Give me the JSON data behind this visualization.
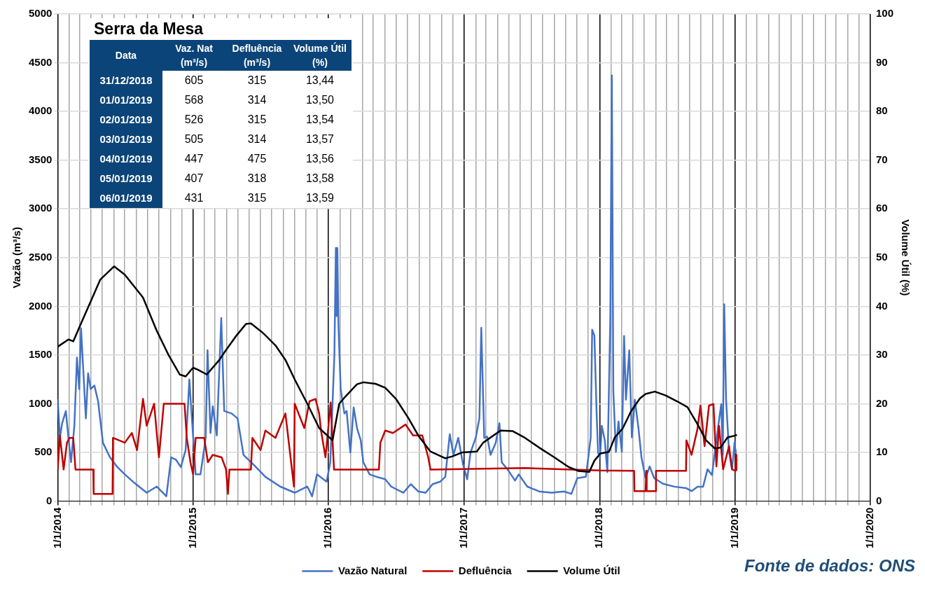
{
  "chart_data": [
    {
      "type": "line",
      "ylabel": "Vazão (m³/s)",
      "y2label": "Volume Útil (%)",
      "series": [
        {
          "name": "Vazão Natural",
          "color": "#4472c4",
          "x": [
            "2014-01-01",
            "2014-01-07",
            "2014-01-13",
            "2014-01-23",
            "2014-01-30",
            "2014-02-06",
            "2014-02-15",
            "2014-02-22",
            "2014-02-28",
            "2014-03-05",
            "2014-03-11",
            "2014-03-18",
            "2014-03-24",
            "2014-03-31",
            "2014-04-10",
            "2014-04-20",
            "2014-05-03",
            "2014-05-22",
            "2014-06-11",
            "2014-07-01",
            "2014-07-27",
            "2014-08-29",
            "2014-09-25",
            "2014-10-21",
            "2014-11-03",
            "2014-11-16",
            "2014-11-29",
            "2014-12-12",
            "2014-12-22",
            "2014-12-28",
            "2015-01-08",
            "2015-01-21",
            "2015-02-04",
            "2015-02-09",
            "2015-02-17",
            "2015-02-23",
            "2015-03-06",
            "2015-03-18",
            "2015-03-26",
            "2015-04-15",
            "2015-05-01",
            "2015-05-17",
            "2015-06-13",
            "2015-07-15",
            "2015-08-24",
            "2015-10-02",
            "2015-11-05",
            "2015-11-18",
            "2015-12-01",
            "2015-12-27",
            "2016-01-06",
            "2016-01-11",
            "2016-01-17",
            "2016-01-21",
            "2016-01-23",
            "2016-01-25",
            "2016-01-28",
            "2016-02-03",
            "2016-02-13",
            "2016-02-19",
            "2016-02-29",
            "2016-03-09",
            "2016-03-18",
            "2016-03-28",
            "2016-04-04",
            "2016-04-21",
            "2016-05-10",
            "2016-06-02",
            "2016-06-18",
            "2016-07-21",
            "2016-08-10",
            "2016-08-30",
            "2016-09-19",
            "2016-10-08",
            "2016-10-28",
            "2016-11-11",
            "2016-11-23",
            "2016-12-03",
            "2016-12-16",
            "2016-12-29",
            "2017-01-09",
            "2017-01-18",
            "2017-02-01",
            "2017-02-11",
            "2017-02-16",
            "2017-02-24",
            "2017-03-04",
            "2017-03-13",
            "2017-03-27",
            "2017-04-06",
            "2017-04-12",
            "2017-04-28",
            "2017-05-18",
            "2017-05-28",
            "2017-06-20",
            "2017-07-22",
            "2017-08-25",
            "2017-09-27",
            "2017-10-17",
            "2017-11-02",
            "2017-11-25",
            "2017-12-08",
            "2017-12-12",
            "2017-12-18",
            "2017-12-24",
            "2017-12-28",
            "2018-01-02",
            "2018-01-07",
            "2018-01-15",
            "2018-01-22",
            "2018-01-30",
            "2018-02-03",
            "2018-02-07",
            "2018-02-14",
            "2018-02-21",
            "2018-03-02",
            "2018-03-08",
            "2018-03-13",
            "2018-03-22",
            "2018-03-29",
            "2018-04-06",
            "2018-04-16",
            "2018-04-24",
            "2018-05-05",
            "2018-05-16",
            "2018-05-28",
            "2018-06-21",
            "2018-07-22",
            "2018-08-22",
            "2018-09-06",
            "2018-09-22",
            "2018-10-07",
            "2018-10-19",
            "2018-10-31",
            "2018-11-08",
            "2018-11-19",
            "2018-11-25",
            "2018-11-29",
            "2018-12-03",
            "2018-12-08",
            "2018-12-16",
            "2018-12-24",
            "2018-12-31",
            "2019-01-01",
            "2019-01-02",
            "2019-01-03",
            "2019-01-04",
            "2019-01-05",
            "2019-01-06"
          ],
          "values": [
            1050,
            650,
            800,
            925,
            650,
            400,
            775,
            1475,
            1150,
            1775,
            1350,
            850,
            1312,
            1150,
            1187,
            1025,
            600,
            450,
            350,
            275,
            187,
            87,
            150,
            50,
            450,
            425,
            350,
            525,
            1250,
            900,
            275,
            275,
            650,
            1550,
            700,
            975,
            675,
            1880,
            925,
            900,
            850,
            475,
            375,
            250,
            150,
            87,
            150,
            50,
            275,
            200,
            400,
            900,
            1500,
            2600,
            1900,
            2600,
            1800,
            1150,
            900,
            925,
            500,
            962,
            750,
            625,
            400,
            275,
            250,
            225,
            150,
            87,
            175,
            100,
            87,
            175,
            200,
            250,
            687,
            475,
            650,
            375,
            225,
            500,
            650,
            850,
            1780,
            650,
            662,
            475,
            600,
            800,
            400,
            325,
            212,
            275,
            150,
            100,
            87,
            100,
            75,
            237,
            250,
            650,
            1760,
            1700,
            900,
            500,
            446,
            774,
            625,
            298,
            1900,
            4370,
            1131,
            506,
            818,
            506,
            1696,
            1042,
            1548,
            655,
            1042,
            744,
            446,
            238,
            357,
            238,
            179,
            149,
            134,
            104,
            149,
            149,
            327,
            268,
            506,
            833,
            997,
            476,
            2020,
            1042,
            506,
            327,
            605,
            568,
            526,
            505,
            447,
            407,
            431
          ]
        },
        {
          "name": "Defluência",
          "color": "#c00000",
          "x": [
            "2014-01-01",
            "2014-01-07",
            "2014-01-17",
            "2014-01-26",
            "2014-02-02",
            "2014-02-12",
            "2014-02-18",
            "2014-04-07",
            "2014-04-08",
            "2014-05-29",
            "2014-05-30",
            "2014-07-01",
            "2014-07-20",
            "2014-08-03",
            "2014-08-19",
            "2014-08-29",
            "2014-09-18",
            "2014-10-01",
            "2014-10-14",
            "2014-12-09",
            "2014-12-15",
            "2014-12-25",
            "2015-01-01",
            "2015-01-08",
            "2015-01-31",
            "2015-02-10",
            "2015-02-23",
            "2015-03-19",
            "2015-03-31",
            "2015-04-05",
            "2015-04-09",
            "2015-06-06",
            "2015-06-10",
            "2015-07-02",
            "2015-07-15",
            "2015-08-11",
            "2015-09-07",
            "2015-09-30",
            "2015-10-02",
            "2015-10-28",
            "2015-11-11",
            "2015-11-27",
            "2015-12-07",
            "2015-12-12",
            "2015-12-24",
            "2016-01-07",
            "2016-01-16",
            "2016-05-16",
            "2016-05-20",
            "2016-06-02",
            "2016-06-23",
            "2016-07-27",
            "2016-08-16",
            "2016-09-10",
            "2016-09-26",
            "2016-10-02",
            "2017-06-15",
            "2018-01-01",
            "2018-04-04",
            "2018-04-05",
            "2018-05-05",
            "2018-05-07",
            "2018-05-08",
            "2018-06-01",
            "2018-06-02",
            "2018-08-22",
            "2018-08-23",
            "2018-09-06",
            "2018-09-22",
            "2018-09-30",
            "2018-10-11",
            "2018-10-23",
            "2018-11-04",
            "2018-11-12",
            "2018-11-19",
            "2018-11-30",
            "2018-12-16",
            "2018-12-24",
            "2018-12-31",
            "2019-01-01",
            "2019-01-02",
            "2019-01-03",
            "2019-01-04",
            "2019-01-05",
            "2019-01-06"
          ],
          "values": [
            325,
            675,
            325,
            600,
            650,
            650,
            325,
            325,
            75,
            75,
            650,
            600,
            700,
            525,
            1050,
            775,
            1000,
            450,
            1000,
            1000,
            650,
            400,
            275,
            650,
            650,
            400,
            475,
            450,
            325,
            75,
            325,
            325,
            650,
            525,
            725,
            650,
            900,
            150,
            1000,
            750,
            1025,
            1050,
            900,
            725,
            450,
            1012,
            325,
            325,
            600,
            725,
            700,
            787,
            675,
            675,
            450,
            325,
            340,
            315,
            312,
            104,
            104,
            312,
            104,
            104,
            312,
            312,
            625,
            476,
            744,
            982,
            565,
            982,
            997,
            357,
            774,
            327,
            565,
            327,
            315,
            314,
            315,
            314,
            475,
            318,
            315
          ]
        },
        {
          "name": "Volume Útil",
          "color": "#000000",
          "axis": "y2",
          "x": [
            "2014-01-01",
            "2014-01-30",
            "2014-02-12",
            "2014-03-05",
            "2014-03-31",
            "2014-04-26",
            "2014-06-02",
            "2014-07-01",
            "2014-07-27",
            "2014-08-19",
            "2014-09-25",
            "2014-10-27",
            "2014-11-26",
            "2014-12-12",
            "2015-01-01",
            "2015-01-14",
            "2015-02-07",
            "2015-03-13",
            "2015-03-26",
            "2015-04-28",
            "2015-05-24",
            "2015-06-06",
            "2015-07-09",
            "2015-08-11",
            "2015-09-07",
            "2015-10-02",
            "2015-11-05",
            "2015-12-07",
            "2016-01-12",
            "2016-01-30",
            "2016-02-16",
            "2016-03-18",
            "2016-04-04",
            "2016-05-07",
            "2016-06-02",
            "2016-07-01",
            "2016-08-04",
            "2016-08-30",
            "2016-10-02",
            "2016-11-11",
            "2016-11-30",
            "2016-12-26",
            "2017-02-04",
            "2017-02-21",
            "2017-04-09",
            "2017-05-11",
            "2017-06-14",
            "2017-07-22",
            "2017-09-01",
            "2017-10-10",
            "2017-11-05",
            "2017-12-04",
            "2017-12-18",
            "2018-01-03",
            "2018-01-26",
            "2018-02-11",
            "2018-03-04",
            "2018-03-27",
            "2018-04-20",
            "2018-05-05",
            "2018-05-30",
            "2018-06-28",
            "2018-07-29",
            "2018-08-26",
            "2018-09-22",
            "2018-10-15",
            "2018-11-08",
            "2018-11-23",
            "2018-12-12",
            "2018-12-31",
            "2019-01-01",
            "2019-01-02",
            "2019-01-03",
            "2019-01-04",
            "2019-01-05",
            "2019-01-06"
          ],
          "values": [
            31.7,
            33.2,
            32.8,
            36.5,
            41,
            45.5,
            48.2,
            46.5,
            44,
            41.8,
            35,
            30,
            26,
            25.6,
            27.4,
            27,
            26,
            29,
            30.5,
            34,
            36.4,
            36.5,
            34.5,
            32,
            29,
            25,
            20,
            15,
            12.5,
            20,
            21.5,
            24,
            24.4,
            24.1,
            23.3,
            21,
            17,
            13.5,
            10.2,
            8.8,
            9.2,
            10,
            10.2,
            12,
            14.5,
            14.4,
            13,
            11,
            9,
            7,
            6.2,
            6,
            8.3,
            9.8,
            10.1,
            13.1,
            14.9,
            18.5,
            21.1,
            22,
            22.5,
            21.7,
            20.5,
            19.3,
            15.8,
            12.5,
            10.8,
            11,
            13.1,
            13.44,
            13.5,
            13.54,
            13.57,
            13.56,
            13.58,
            13.59
          ]
        }
      ],
      "xlim": [
        "2014-01-01",
        "2020-01-01"
      ],
      "xticks": [
        {
          "value": "2014-01-01",
          "label": "1/1/2014"
        },
        {
          "value": "2014-02-01",
          "label": null
        },
        {
          "value": "2014-03-01",
          "label": null
        },
        {
          "value": "2014-04-01",
          "label": null
        },
        {
          "value": "2014-05-01",
          "label": null
        },
        {
          "value": "2014-06-01",
          "label": null
        },
        {
          "value": "2014-07-01",
          "label": null
        },
        {
          "value": "2014-08-01",
          "label": null
        },
        {
          "value": "2014-09-01",
          "label": null
        },
        {
          "value": "2014-10-01",
          "label": null
        },
        {
          "value": "2014-11-01",
          "label": null
        },
        {
          "value": "2014-12-01",
          "label": null
        },
        {
          "value": "2015-01-01",
          "label": "1/1/2015"
        },
        {
          "value": "2015-02-01",
          "label": null
        },
        {
          "value": "2015-03-01",
          "label": null
        },
        {
          "value": "2015-04-01",
          "label": null
        },
        {
          "value": "2015-05-01",
          "label": null
        },
        {
          "value": "2015-06-01",
          "label": null
        },
        {
          "value": "2015-07-01",
          "label": null
        },
        {
          "value": "2015-08-01",
          "label": null
        },
        {
          "value": "2015-09-01",
          "label": null
        },
        {
          "value": "2015-10-01",
          "label": null
        },
        {
          "value": "2015-11-01",
          "label": null
        },
        {
          "value": "2015-12-01",
          "label": null
        },
        {
          "value": "2016-01-01",
          "label": "1/1/2016"
        },
        {
          "value": "2016-02-01",
          "label": null
        },
        {
          "value": "2016-03-01",
          "label": null
        },
        {
          "value": "2016-04-01",
          "label": null
        },
        {
          "value": "2016-05-01",
          "label": null
        },
        {
          "value": "2016-06-01",
          "label": null
        },
        {
          "value": "2016-07-01",
          "label": null
        },
        {
          "value": "2016-08-01",
          "label": null
        },
        {
          "value": "2016-09-01",
          "label": null
        },
        {
          "value": "2016-10-01",
          "label": null
        },
        {
          "value": "2016-11-01",
          "label": null
        },
        {
          "value": "2016-12-01",
          "label": null
        },
        {
          "value": "2017-01-01",
          "label": "1/1/2017"
        },
        {
          "value": "2017-02-01",
          "label": null
        },
        {
          "value": "2017-03-01",
          "label": null
        },
        {
          "value": "2017-04-01",
          "label": null
        },
        {
          "value": "2017-05-01",
          "label": null
        },
        {
          "value": "2017-06-01",
          "label": null
        },
        {
          "value": "2017-07-01",
          "label": null
        },
        {
          "value": "2017-08-01",
          "label": null
        },
        {
          "value": "2017-09-01",
          "label": null
        },
        {
          "value": "2017-10-01",
          "label": null
        },
        {
          "value": "2017-11-01",
          "label": null
        },
        {
          "value": "2017-12-01",
          "label": null
        },
        {
          "value": "2018-01-01",
          "label": "1/1/2018"
        },
        {
          "value": "2018-02-01",
          "label": null
        },
        {
          "value": "2018-03-01",
          "label": null
        },
        {
          "value": "2018-04-01",
          "label": null
        },
        {
          "value": "2018-05-01",
          "label": null
        },
        {
          "value": "2018-06-01",
          "label": null
        },
        {
          "value": "2018-07-01",
          "label": null
        },
        {
          "value": "2018-08-01",
          "label": null
        },
        {
          "value": "2018-09-01",
          "label": null
        },
        {
          "value": "2018-10-01",
          "label": null
        },
        {
          "value": "2018-11-01",
          "label": null
        },
        {
          "value": "2018-12-01",
          "label": null
        },
        {
          "value": "2019-01-01",
          "label": "1/1/2019"
        },
        {
          "value": "2019-02-01",
          "label": null
        },
        {
          "value": "2019-03-01",
          "label": null
        },
        {
          "value": "2019-04-01",
          "label": null
        },
        {
          "value": "2019-05-01",
          "label": null
        },
        {
          "value": "2019-06-01",
          "label": null
        },
        {
          "value": "2019-07-01",
          "label": null
        },
        {
          "value": "2019-08-01",
          "label": null
        },
        {
          "value": "2019-09-01",
          "label": null
        },
        {
          "value": "2019-10-01",
          "label": null
        },
        {
          "value": "2019-11-01",
          "label": null
        },
        {
          "value": "2019-12-01",
          "label": null
        },
        {
          "value": "2020-01-01",
          "label": "1/1/2020"
        }
      ],
      "ylim": [
        0,
        5000
      ],
      "yticks": [
        0,
        500,
        1000,
        1500,
        2000,
        2500,
        3000,
        3500,
        4000,
        4500,
        5000
      ],
      "y2lim": [
        0,
        100
      ],
      "y2ticks": [
        0,
        10,
        20,
        30,
        40,
        50,
        60,
        70,
        80,
        90,
        100
      ],
      "grid": true,
      "legend": "bottom",
      "marker": "none",
      "annotations": [
        "Fonte de dados: ONS"
      ]
    },
    {
      "type": "other",
      "title": "Serra da Mesa",
      "categories": [
        "Data",
        "Vaz. Nat (m³/s)",
        "Defluência (m³/s)",
        "Volume Útil (%)"
      ],
      "y_categories": [
        "31/12/2018",
        "01/01/2019",
        "02/01/2019",
        "03/01/2019",
        "04/01/2019",
        "05/01/2019",
        "06/01/2019"
      ],
      "cell_labels": [
        [
          "605",
          "315",
          "13,44"
        ],
        [
          "568",
          "314",
          "13,50"
        ],
        [
          "526",
          "315",
          "13,54"
        ],
        [
          "505",
          "314",
          "13,57"
        ],
        [
          "447",
          "475",
          "13,56"
        ],
        [
          "407",
          "318",
          "13,58"
        ],
        [
          "431",
          "315",
          "13,59"
        ]
      ]
    }
  ]
}
